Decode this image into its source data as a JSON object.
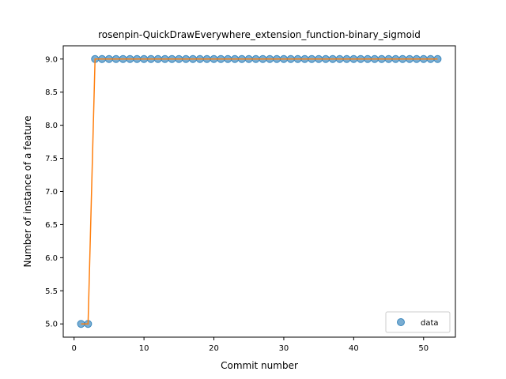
{
  "chart_data": {
    "type": "line",
    "title": "rosenpin-QuickDrawEverywhere_extension_function-binary_sigmoid",
    "xlabel": "Commit number",
    "ylabel": "Number of instance of a feature",
    "xlim": [
      -1.55,
      54.55
    ],
    "ylim": [
      4.8,
      9.2
    ],
    "xticks": [
      0,
      10,
      20,
      30,
      40,
      50
    ],
    "yticks": [
      5.0,
      5.5,
      6.0,
      6.5,
      7.0,
      7.5,
      8.0,
      8.5,
      9.0
    ],
    "grid": false,
    "legend_position": "lower-right",
    "series": [
      {
        "name": "data",
        "style": "markers",
        "color": "#1f77b4",
        "x": [
          1,
          2,
          3,
          4,
          5,
          6,
          7,
          8,
          9,
          10,
          11,
          12,
          13,
          14,
          15,
          16,
          17,
          18,
          19,
          20,
          21,
          22,
          23,
          24,
          25,
          26,
          27,
          28,
          29,
          30,
          31,
          32,
          33,
          34,
          35,
          36,
          37,
          38,
          39,
          40,
          41,
          42,
          43,
          44,
          45,
          46,
          47,
          48,
          49,
          50,
          51,
          52
        ],
        "y": [
          5,
          5,
          9,
          9,
          9,
          9,
          9,
          9,
          9,
          9,
          9,
          9,
          9,
          9,
          9,
          9,
          9,
          9,
          9,
          9,
          9,
          9,
          9,
          9,
          9,
          9,
          9,
          9,
          9,
          9,
          9,
          9,
          9,
          9,
          9,
          9,
          9,
          9,
          9,
          9,
          9,
          9,
          9,
          9,
          9,
          9,
          9,
          9,
          9,
          9,
          9,
          9
        ]
      },
      {
        "style": "line",
        "color": "#ff7f0e",
        "x": [
          1,
          2,
          3,
          4,
          5,
          6,
          7,
          8,
          9,
          10,
          11,
          12,
          13,
          14,
          15,
          16,
          17,
          18,
          19,
          20,
          21,
          22,
          23,
          24,
          25,
          26,
          27,
          28,
          29,
          30,
          31,
          32,
          33,
          34,
          35,
          36,
          37,
          38,
          39,
          40,
          41,
          42,
          43,
          44,
          45,
          46,
          47,
          48,
          49,
          50,
          51,
          52
        ],
        "y": [
          5,
          5,
          9,
          9,
          9,
          9,
          9,
          9,
          9,
          9,
          9,
          9,
          9,
          9,
          9,
          9,
          9,
          9,
          9,
          9,
          9,
          9,
          9,
          9,
          9,
          9,
          9,
          9,
          9,
          9,
          9,
          9,
          9,
          9,
          9,
          9,
          9,
          9,
          9,
          9,
          9,
          9,
          9,
          9,
          9,
          9,
          9,
          9,
          9,
          9,
          9,
          9
        ]
      }
    ]
  }
}
